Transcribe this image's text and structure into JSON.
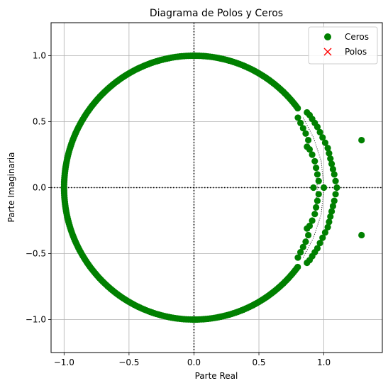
{
  "chart_data": {
    "type": "scatter",
    "title": "Diagrama de Polos y Ceros",
    "xlabel": "Parte Real",
    "ylabel": "Parte Imaginaria",
    "xlim": [
      -1.1,
      1.45
    ],
    "ylim": [
      -1.25,
      1.25
    ],
    "x_ticks": [
      -1.0,
      -0.5,
      0.0,
      0.5,
      1.0
    ],
    "x_tick_labels": [
      "−1.0",
      "−0.5",
      "0.0",
      "0.5",
      "1.0"
    ],
    "y_ticks": [
      -1.0,
      -0.5,
      0.0,
      0.5,
      1.0
    ],
    "y_tick_labels": [
      "−1.0",
      "−0.5",
      "0.0",
      "0.5",
      "1.0"
    ],
    "grid": true,
    "legend": {
      "placement": "top-right",
      "entries": [
        {
          "label": "Ceros",
          "marker": "circle",
          "color": "#008000"
        },
        {
          "label": "Polos",
          "marker": "x",
          "color": "#ff0000"
        }
      ]
    },
    "reference_lines": {
      "x": 0,
      "y": 0,
      "style": "dotted",
      "color": "#000000"
    },
    "series": [
      {
        "name": "Ceros",
        "marker": "circle",
        "color": "#008000",
        "generators": [
          {
            "kind": "arc",
            "radius": 1.0,
            "theta_start_deg": 37,
            "theta_end_deg": 323,
            "count": 300
          },
          {
            "kind": "arc",
            "center": [
              0.0,
              0.0
            ],
            "radius": 0.0,
            "count": 0
          }
        ],
        "points": [
          [
            0.87,
            0.57
          ],
          [
            0.89,
            0.55
          ],
          [
            0.91,
            0.52
          ],
          [
            0.93,
            0.49
          ],
          [
            0.95,
            0.46
          ],
          [
            0.97,
            0.42
          ],
          [
            0.99,
            0.38
          ],
          [
            1.01,
            0.34
          ],
          [
            1.03,
            0.3
          ],
          [
            1.04,
            0.26
          ],
          [
            1.05,
            0.22
          ],
          [
            1.06,
            0.18
          ],
          [
            1.07,
            0.14
          ],
          [
            1.08,
            0.1
          ],
          [
            1.09,
            0.05
          ],
          [
            1.1,
            0.0
          ],
          [
            0.87,
            -0.57
          ],
          [
            0.89,
            -0.55
          ],
          [
            0.91,
            -0.52
          ],
          [
            0.93,
            -0.49
          ],
          [
            0.95,
            -0.46
          ],
          [
            0.97,
            -0.42
          ],
          [
            0.99,
            -0.38
          ],
          [
            1.01,
            -0.34
          ],
          [
            1.03,
            -0.3
          ],
          [
            1.04,
            -0.26
          ],
          [
            1.05,
            -0.22
          ],
          [
            1.06,
            -0.18
          ],
          [
            1.07,
            -0.14
          ],
          [
            1.08,
            -0.1
          ],
          [
            1.09,
            -0.05
          ],
          [
            0.8,
            0.53
          ],
          [
            0.82,
            0.49
          ],
          [
            0.84,
            0.45
          ],
          [
            0.86,
            0.41
          ],
          [
            0.88,
            0.36
          ],
          [
            0.87,
            0.31
          ],
          [
            0.89,
            0.29
          ],
          [
            0.91,
            0.25
          ],
          [
            0.93,
            0.2
          ],
          [
            0.94,
            0.15
          ],
          [
            0.95,
            0.1
          ],
          [
            0.96,
            0.05
          ],
          [
            0.92,
            0.0
          ],
          [
            0.8,
            -0.53
          ],
          [
            0.82,
            -0.49
          ],
          [
            0.84,
            -0.45
          ],
          [
            0.86,
            -0.41
          ],
          [
            0.88,
            -0.36
          ],
          [
            0.87,
            -0.31
          ],
          [
            0.89,
            -0.29
          ],
          [
            0.91,
            -0.25
          ],
          [
            0.93,
            -0.2
          ],
          [
            0.94,
            -0.15
          ],
          [
            0.95,
            -0.1
          ],
          [
            0.96,
            -0.05
          ],
          [
            1.0,
            0.0
          ],
          [
            1.29,
            0.36
          ],
          [
            1.29,
            -0.36
          ]
        ]
      },
      {
        "name": "Polos",
        "marker": "x",
        "color": "#ff0000",
        "points": []
      }
    ],
    "guide_arcs": [
      {
        "style": "dotted",
        "color": "#000000",
        "points": [
          [
            0.84,
            0.53
          ],
          [
            0.92,
            0.38
          ],
          [
            0.98,
            0.2
          ],
          [
            1.0,
            0.0
          ],
          [
            0.98,
            -0.2
          ],
          [
            0.92,
            -0.38
          ],
          [
            0.84,
            -0.53
          ]
        ]
      },
      {
        "style": "dotted",
        "color": "#000000",
        "points": [
          [
            0.8,
            0.53
          ],
          [
            0.87,
            0.38
          ],
          [
            0.93,
            0.2
          ],
          [
            0.95,
            0.0
          ],
          [
            0.93,
            -0.2
          ],
          [
            0.87,
            -0.38
          ],
          [
            0.8,
            -0.53
          ]
        ]
      }
    ]
  }
}
